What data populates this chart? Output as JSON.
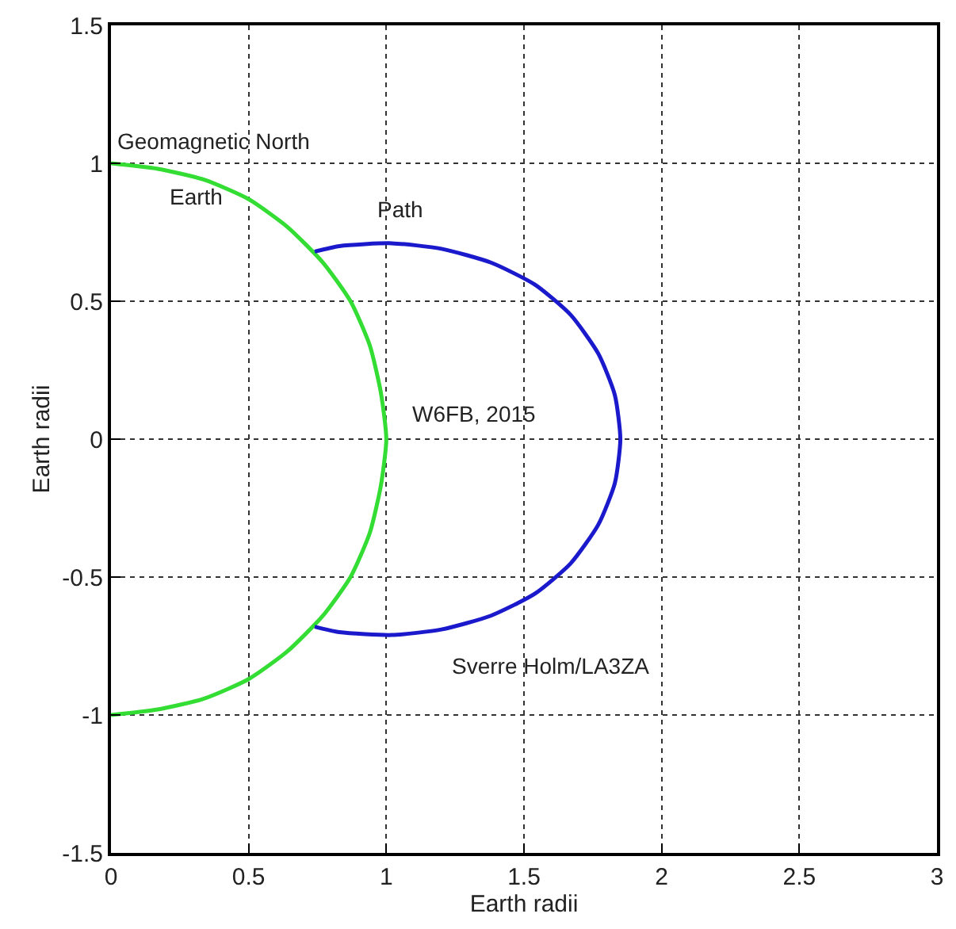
{
  "chart_data": {
    "type": "line",
    "xlabel": "Earth radii",
    "ylabel": "Earth radii",
    "series": [
      {
        "color": "#33dd33",
        "x": [
          0,
          0.17,
          0.34,
          0.5,
          0.64,
          0.77,
          0.87,
          0.94,
          0.98,
          1,
          0.98,
          0.94,
          0.87,
          0.77,
          0.64,
          0.5,
          0.34,
          0.17,
          0
        ],
        "values": [
          1,
          0.98,
          0.94,
          0.87,
          0.77,
          0.64,
          0.5,
          0.34,
          0.17,
          0,
          -0.17,
          -0.34,
          -0.5,
          -0.64,
          -0.77,
          -0.87,
          -0.94,
          -0.98,
          -1
        ]
      },
      {
        "color": "#1a1acc",
        "x": [
          0.74,
          0.83,
          1.02,
          1.2,
          1.38,
          1.54,
          1.67,
          1.77,
          1.83,
          1.85,
          1.83,
          1.77,
          1.67,
          1.54,
          1.38,
          1.2,
          1.02,
          0.83,
          0.74
        ],
        "values": [
          0.68,
          0.7,
          0.71,
          0.69,
          0.64,
          0.56,
          0.45,
          0.31,
          0.16,
          0,
          -0.16,
          -0.31,
          -0.45,
          -0.56,
          -0.64,
          -0.69,
          -0.71,
          -0.7,
          -0.68
        ]
      }
    ],
    "annotations": [
      "Geomagnetic North",
      "Earth",
      "Path",
      "W6FB, 2015",
      "Sverre Holm/LA3ZA"
    ],
    "xlim": [
      0,
      3
    ],
    "xticks": [
      0,
      0.5,
      1,
      1.5,
      2,
      2.5,
      3
    ],
    "ylim": [
      -1.5,
      1.5
    ],
    "yticks": [
      -1.5,
      -1,
      -0.5,
      0,
      0.5,
      1,
      1.5
    ],
    "grid": true,
    "line_style": "solid",
    "marker": "none"
  }
}
